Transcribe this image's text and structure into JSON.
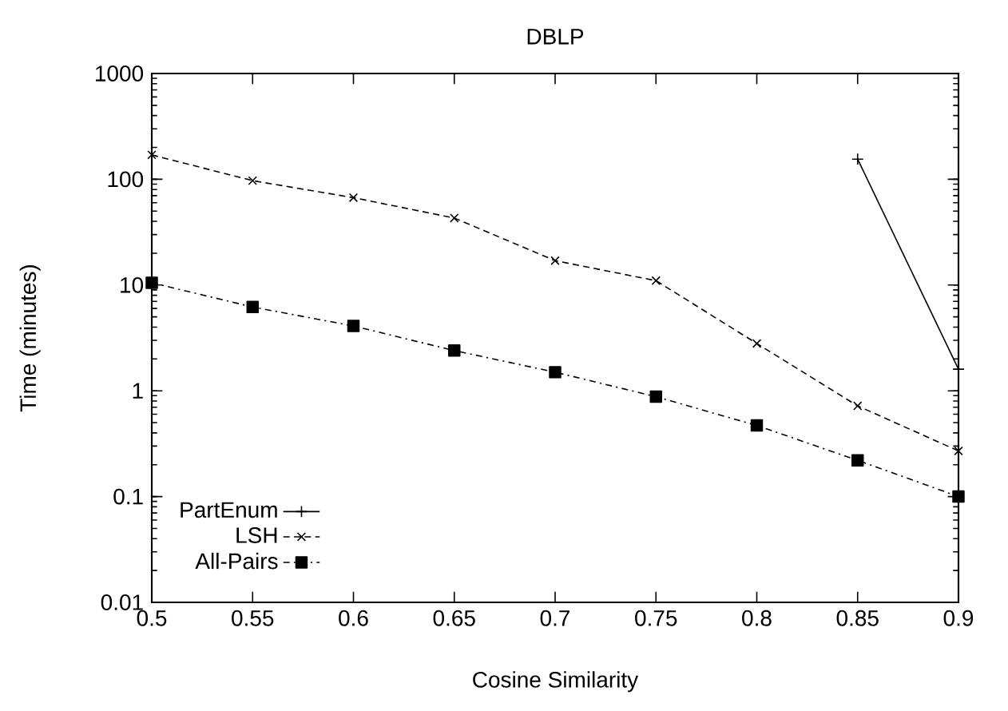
{
  "chart_data": {
    "type": "line",
    "title": "DBLP",
    "xlabel": "Cosine Similarity",
    "ylabel": "Time (minutes)",
    "x": [
      0.5,
      0.55,
      0.6,
      0.65,
      0.7,
      0.75,
      0.8,
      0.85,
      0.9
    ],
    "series": [
      {
        "name": "PartEnum",
        "color": "#000000",
        "x": [
          0.85,
          0.9
        ],
        "values": [
          155,
          1.6
        ],
        "marker": "cross",
        "line_style": "solid"
      },
      {
        "name": "LSH",
        "color": "#000000",
        "values": [
          170,
          97,
          67,
          43,
          17,
          11,
          2.8,
          0.72,
          0.27
        ],
        "marker": "x",
        "line_style": "dashed"
      },
      {
        "name": "All-Pairs",
        "color": "#000000",
        "values": [
          10.5,
          6.2,
          4.1,
          2.4,
          1.5,
          0.88,
          0.47,
          0.22,
          0.1
        ],
        "marker": "square",
        "line_style": "dashdot"
      }
    ],
    "log": "y",
    "grid": false,
    "legend": "bottom left",
    "xlim": [
      0.5,
      0.9
    ],
    "ylim": [
      0.01,
      1000
    ],
    "xticks": [
      0.5,
      0.55,
      0.6,
      0.65,
      0.7,
      0.75,
      0.8,
      0.85,
      0.9
    ],
    "yticks": [
      0.01,
      0.1,
      1,
      10,
      100,
      1000
    ]
  }
}
